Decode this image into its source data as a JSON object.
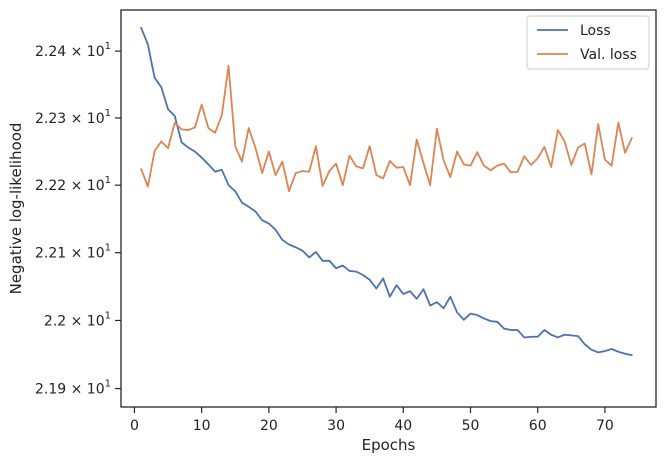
{
  "chart_data": {
    "type": "line",
    "xlabel": "Epochs",
    "ylabel": "Negative log-likelihood",
    "xlim": [
      -2,
      77.6
    ],
    "ylim": [
      21.873,
      22.4617
    ],
    "yscale": "log",
    "grid": false,
    "legend_position": "top-right",
    "x_ticks": [
      0,
      10,
      20,
      30,
      40,
      50,
      60,
      70
    ],
    "x_tick_labels": [
      "0",
      "10",
      "20",
      "30",
      "40",
      "50",
      "60",
      "70"
    ],
    "y_ticks": [
      {
        "value": 21.9,
        "mantissa": "2.19",
        "times": "×",
        "base": "10",
        "exponent": "1"
      },
      {
        "value": 22.0,
        "mantissa": "2.2",
        "times": "×",
        "base": "10",
        "exponent": "1"
      },
      {
        "value": 22.1,
        "mantissa": "2.21",
        "times": "×",
        "base": "10",
        "exponent": "1"
      },
      {
        "value": 22.2,
        "mantissa": "2.22",
        "times": "×",
        "base": "10",
        "exponent": "1"
      },
      {
        "value": 22.3,
        "mantissa": "2.23",
        "times": "×",
        "base": "10",
        "exponent": "1"
      },
      {
        "value": 22.4,
        "mantissa": "2.24",
        "times": "×",
        "base": "10",
        "exponent": "1"
      }
    ],
    "x": [
      1,
      2,
      3,
      4,
      5,
      6,
      7,
      8,
      9,
      10,
      11,
      12,
      13,
      14,
      15,
      16,
      17,
      18,
      19,
      20,
      21,
      22,
      23,
      24,
      25,
      26,
      27,
      28,
      29,
      30,
      31,
      32,
      33,
      34,
      35,
      36,
      37,
      38,
      39,
      40,
      41,
      42,
      43,
      44,
      45,
      46,
      47,
      48,
      49,
      50,
      51,
      52,
      53,
      54,
      55,
      56,
      57,
      58,
      59,
      60,
      61,
      62,
      63,
      64,
      65,
      66,
      67,
      68,
      69,
      70,
      71,
      72,
      73,
      74
    ],
    "series": [
      {
        "name": "Loss",
        "color": "#4c72b0",
        "values": [
          22.435,
          22.41,
          22.36,
          22.346,
          22.313,
          22.303,
          22.264,
          22.256,
          22.25,
          22.241,
          22.231,
          22.22,
          22.223,
          22.2,
          22.191,
          22.174,
          22.168,
          22.161,
          22.148,
          22.143,
          22.134,
          22.119,
          22.112,
          22.108,
          22.103,
          22.093,
          22.101,
          22.088,
          22.088,
          22.077,
          22.081,
          22.073,
          22.072,
          22.067,
          22.06,
          22.047,
          22.062,
          22.035,
          22.052,
          22.039,
          22.043,
          22.032,
          22.046,
          22.022,
          22.027,
          22.018,
          22.035,
          22.012,
          22.001,
          22.01,
          22.008,
          22.003,
          21.999,
          21.998,
          21.988,
          21.986,
          21.986,
          21.975,
          21.976,
          21.976,
          21.986,
          21.979,
          21.975,
          21.979,
          21.978,
          21.977,
          21.965,
          21.957,
          21.953,
          21.955,
          21.958,
          21.954,
          21.951,
          21.949
        ]
      },
      {
        "name": "Val. loss",
        "color": "#dd8452",
        "values": [
          22.224,
          22.198,
          22.251,
          22.265,
          22.255,
          22.293,
          22.283,
          22.282,
          22.286,
          22.32,
          22.285,
          22.278,
          22.304,
          22.378,
          22.258,
          22.235,
          22.285,
          22.256,
          22.218,
          22.25,
          22.215,
          22.235,
          22.191,
          22.218,
          22.221,
          22.22,
          22.258,
          22.199,
          22.221,
          22.232,
          22.2,
          22.244,
          22.228,
          22.225,
          22.258,
          22.215,
          22.21,
          22.236,
          22.226,
          22.227,
          22.2,
          22.268,
          22.233,
          22.2,
          22.284,
          22.237,
          22.212,
          22.25,
          22.231,
          22.229,
          22.249,
          22.229,
          22.222,
          22.229,
          22.232,
          22.219,
          22.22,
          22.243,
          22.23,
          22.24,
          22.257,
          22.227,
          22.282,
          22.265,
          22.23,
          22.256,
          22.262,
          22.216,
          22.291,
          22.238,
          22.229,
          22.293,
          22.248,
          22.27
        ]
      }
    ]
  }
}
